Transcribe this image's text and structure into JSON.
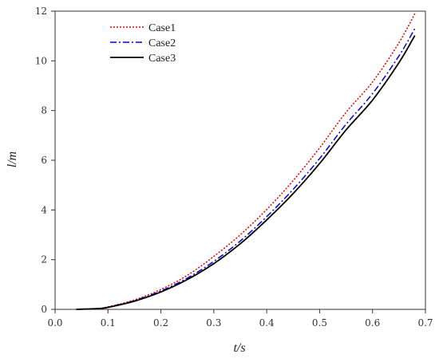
{
  "chart_data": {
    "type": "line",
    "title": "",
    "xlabel": "t/s",
    "ylabel": "l/m",
    "xlim": [
      0.0,
      0.7
    ],
    "ylim": [
      0,
      12
    ],
    "xticks": [
      "0.0",
      "0.1",
      "0.2",
      "0.3",
      "0.4",
      "0.5",
      "0.6",
      "0.7"
    ],
    "yticks": [
      "0",
      "2",
      "4",
      "6",
      "8",
      "10",
      "12"
    ],
    "grid": false,
    "legend_position": "top-left",
    "series": [
      {
        "name": "Case1",
        "color": "#e00000",
        "dash": "dotted",
        "x": [
          0.04,
          0.08,
          0.1,
          0.15,
          0.2,
          0.25,
          0.3,
          0.35,
          0.4,
          0.45,
          0.5,
          0.55,
          0.6,
          0.65,
          0.68
        ],
        "y": [
          0.0,
          0.03,
          0.1,
          0.38,
          0.8,
          1.37,
          2.13,
          3.0,
          4.02,
          5.18,
          6.5,
          7.93,
          9.15,
          10.73,
          11.9
        ]
      },
      {
        "name": "Case2",
        "color": "#0000d0",
        "dash": "dashdot",
        "x": [
          0.04,
          0.08,
          0.1,
          0.15,
          0.2,
          0.25,
          0.3,
          0.35,
          0.4,
          0.45,
          0.5,
          0.55,
          0.6,
          0.65,
          0.68
        ],
        "y": [
          0.0,
          0.03,
          0.09,
          0.35,
          0.74,
          1.26,
          1.93,
          2.75,
          3.73,
          4.83,
          6.07,
          7.45,
          8.68,
          10.2,
          11.3
        ]
      },
      {
        "name": "Case3",
        "color": "#000000",
        "dash": "solid",
        "x": [
          0.04,
          0.08,
          0.1,
          0.15,
          0.2,
          0.25,
          0.3,
          0.35,
          0.4,
          0.45,
          0.5,
          0.55,
          0.6,
          0.65,
          0.68
        ],
        "y": [
          0.0,
          0.03,
          0.08,
          0.33,
          0.7,
          1.2,
          1.84,
          2.64,
          3.6,
          4.66,
          5.87,
          7.22,
          8.42,
          9.93,
          11.02
        ]
      }
    ]
  }
}
